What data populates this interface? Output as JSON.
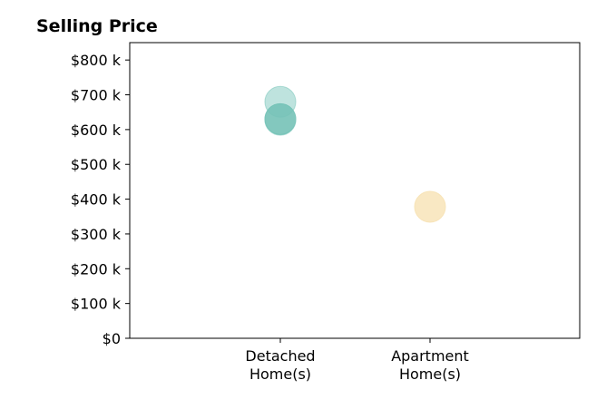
{
  "chart_data": {
    "type": "scatter",
    "title": "Selling Price",
    "xlabel": "",
    "ylabel": "",
    "categories": [
      [
        "Detached",
        "Home(s)"
      ],
      [
        "Apartment",
        "Home(s)"
      ]
    ],
    "ylim": [
      0,
      850000
    ],
    "y_ticks": [
      {
        "value": 0,
        "label": "$0"
      },
      {
        "value": 100000,
        "label": "$100 k"
      },
      {
        "value": 200000,
        "label": "$200 k"
      },
      {
        "value": 300000,
        "label": "$300 k"
      },
      {
        "value": 400000,
        "label": "$400 k"
      },
      {
        "value": 500000,
        "label": "$500 k"
      },
      {
        "value": 600000,
        "label": "$600 k"
      },
      {
        "value": 700000,
        "label": "$700 k"
      },
      {
        "value": 800000,
        "label": "$800 k"
      }
    ],
    "grid": false,
    "points": [
      {
        "category": 0,
        "y": 680000,
        "color": "#7ec8bd",
        "opacity": 0.5
      },
      {
        "category": 0,
        "y": 630000,
        "color": "#6abcb0",
        "opacity": 0.8
      },
      {
        "category": 0,
        "y": 628000,
        "color": "#7ec8bd",
        "opacity": 0.45
      },
      {
        "category": 1,
        "y": 378000,
        "color": "#f7e2b4",
        "opacity": 0.8
      }
    ]
  }
}
